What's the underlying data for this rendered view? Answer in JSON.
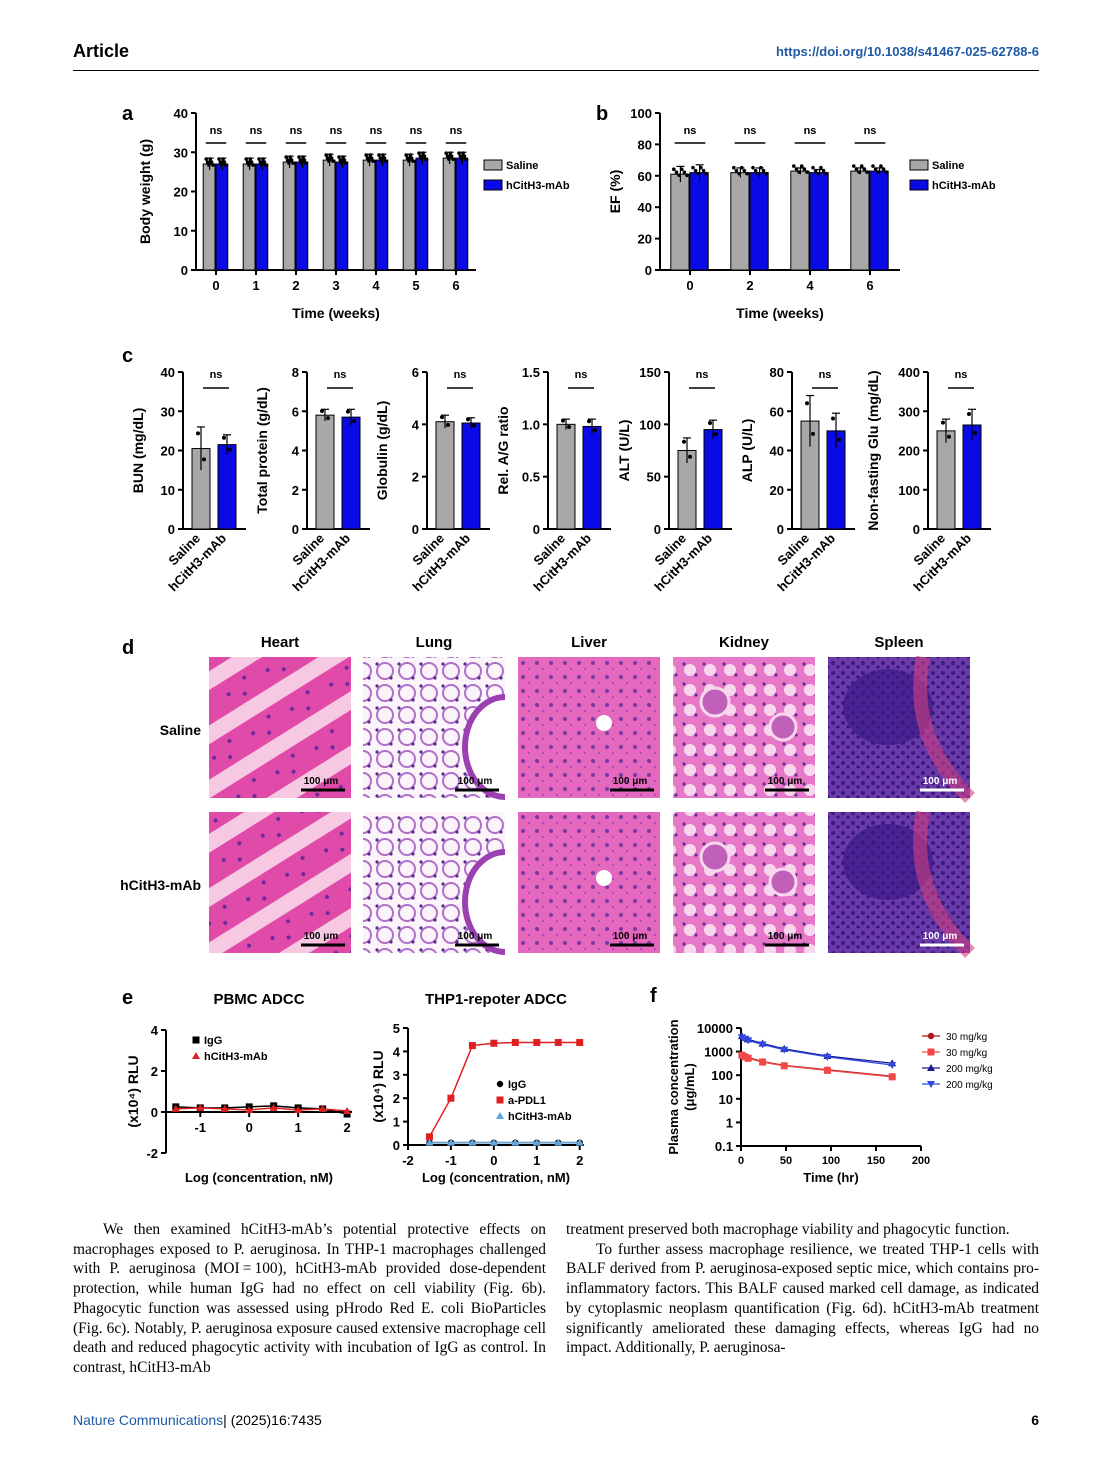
{
  "header": {
    "section": "Article",
    "doi": "https://doi.org/10.1038/s41467-025-62788-6"
  },
  "colors": {
    "saline": "#a8a8a8",
    "mab": "#0a0ae6",
    "red": "#e02020",
    "lightblue": "#5fa6e0",
    "link": "#1f5aa6"
  },
  "panel_labels": {
    "a": "a",
    "b": "b",
    "c": "c",
    "d": "d",
    "e": "e",
    "f": "f"
  },
  "chart_data": [
    {
      "id": "a",
      "type": "bar",
      "categories": [
        "0",
        "1",
        "2",
        "3",
        "4",
        "5",
        "6"
      ],
      "series": [
        {
          "name": "Saline",
          "values": [
            27,
            27,
            27.5,
            28,
            28,
            28,
            28.5
          ]
        },
        {
          "name": "hCitH3-mAb",
          "values": [
            27,
            27,
            27.5,
            27.5,
            28,
            28.5,
            28.5
          ]
        }
      ],
      "errors": [
        1.5,
        1.5,
        1.5,
        1.5,
        1.5,
        1.5,
        1.5
      ],
      "xlabel": "Time (weeks)",
      "ylabel": "Body weight (g)",
      "ylim": [
        0,
        40
      ],
      "yticks": [
        "0",
        "10",
        "20",
        "30",
        "40"
      ],
      "sig": [
        "ns",
        "ns",
        "ns",
        "ns",
        "ns",
        "ns",
        "ns"
      ]
    },
    {
      "id": "b",
      "type": "bar",
      "categories": [
        "0",
        "2",
        "4",
        "6"
      ],
      "series": [
        {
          "name": "Saline",
          "values": [
            61,
            62,
            63,
            63
          ]
        },
        {
          "name": "hCitH3-mAb",
          "values": [
            62,
            62,
            62,
            63
          ]
        }
      ],
      "errors": [
        5,
        3,
        2,
        2
      ],
      "xlabel": "Time (weeks)",
      "ylabel": "EF (%)",
      "ylim": [
        0,
        100
      ],
      "yticks": [
        "0",
        "20",
        "40",
        "60",
        "80",
        "100"
      ],
      "sig": [
        "ns",
        "ns",
        "ns",
        "ns"
      ]
    },
    {
      "id": "c",
      "type": "bar",
      "subplots": [
        {
          "ylabel": "BUN (mg/dL)",
          "ylim": [
            0,
            40
          ],
          "yticks": [
            "0",
            "10",
            "20",
            "30",
            "40"
          ],
          "values": [
            20.5,
            21.5
          ],
          "errors": [
            5.5,
            2.5
          ],
          "sig": "ns"
        },
        {
          "ylabel": "Total protein (g/dL)",
          "ylim": [
            0,
            8
          ],
          "yticks": [
            "0",
            "2",
            "4",
            "6",
            "8"
          ],
          "values": [
            5.8,
            5.7
          ],
          "errors": [
            0.3,
            0.4
          ],
          "sig": "ns"
        },
        {
          "ylabel": "Globulin (g/dL)",
          "ylim": [
            0,
            6
          ],
          "yticks": [
            "0",
            "2",
            "4",
            "6"
          ],
          "values": [
            4.1,
            4.05
          ],
          "errors": [
            0.25,
            0.2
          ],
          "sig": "ns"
        },
        {
          "ylabel": "Rel. A/G ratio",
          "ylim": [
            0,
            1.5
          ],
          "yticks": [
            "0",
            "0.5",
            "1.0",
            "1.5"
          ],
          "values": [
            1.0,
            0.98
          ],
          "errors": [
            0.05,
            0.07
          ],
          "sig": "ns"
        },
        {
          "ylabel": "ALT (U/L)",
          "ylim": [
            0,
            150
          ],
          "yticks": [
            "0",
            "50",
            "100",
            "150"
          ],
          "values": [
            75,
            95
          ],
          "errors": [
            12,
            9
          ],
          "sig": "ns"
        },
        {
          "ylabel": "ALP (U/L)",
          "ylim": [
            0,
            80
          ],
          "yticks": [
            "0",
            "20",
            "40",
            "60",
            "80"
          ],
          "values": [
            55,
            50
          ],
          "errors": [
            13,
            9
          ],
          "sig": "ns"
        },
        {
          "ylabel": "Non-fasting Glu (mg/dL)",
          "ylim": [
            0,
            400
          ],
          "yticks": [
            "0",
            "100",
            "200",
            "300",
            "400"
          ],
          "values": [
            250,
            265
          ],
          "errors": [
            30,
            40
          ],
          "sig": "ns"
        }
      ],
      "categories": [
        "Saline",
        "hCitH3-mAb"
      ]
    },
    {
      "id": "e1",
      "type": "line",
      "title": "PBMC ADCC",
      "xlabel": "Log (concentration, nM)",
      "ylabel": "(x10⁴) RLU",
      "xlim": [
        -1.7,
        2.1
      ],
      "ylim": [
        -2,
        4
      ],
      "xticks": [
        "-1",
        "0",
        "1",
        "2"
      ],
      "yticks": [
        "-2",
        "0",
        "2",
        "4"
      ],
      "series": [
        {
          "name": "IgG",
          "x": [
            -1.5,
            -1,
            -0.5,
            0,
            0.5,
            1,
            1.5,
            2
          ],
          "y": [
            0.25,
            0.2,
            0.2,
            0.25,
            0.3,
            0.2,
            0.15,
            -0.1
          ]
        },
        {
          "name": "hCitH3-mAb",
          "x": [
            -1.5,
            -1,
            -0.5,
            0,
            0.5,
            1,
            1.5,
            2
          ],
          "y": [
            0.15,
            0.2,
            0.15,
            0.1,
            0.2,
            0.1,
            0.15,
            0.05
          ]
        }
      ]
    },
    {
      "id": "e2",
      "type": "line",
      "title": "THP1-repoter ADCC",
      "xlabel": "Log (concentration, nM)",
      "ylabel": "(x10⁴) RLU",
      "xlim": [
        -2,
        2.1
      ],
      "ylim": [
        0,
        5
      ],
      "xticks": [
        "-2",
        "-1",
        "0",
        "1",
        "2"
      ],
      "yticks": [
        "0",
        "1",
        "2",
        "3",
        "4",
        "5"
      ],
      "series": [
        {
          "name": "IgG",
          "x": [
            -1.5,
            -1,
            -0.5,
            0,
            0.5,
            1,
            1.5,
            2
          ],
          "y": [
            0.1,
            0.1,
            0.1,
            0.1,
            0.1,
            0.1,
            0.1,
            0.1
          ]
        },
        {
          "name": "a-PDL1",
          "x": [
            -1.5,
            -1,
            -0.5,
            0,
            0.5,
            1,
            1.5,
            2
          ],
          "y": [
            0.35,
            2.0,
            4.25,
            4.35,
            4.38,
            4.38,
            4.38,
            4.38
          ]
        },
        {
          "name": "hCitH3-mAb",
          "x": [
            -1.5,
            -1,
            -0.5,
            0,
            0.5,
            1,
            1.5,
            2
          ],
          "y": [
            0.1,
            0.1,
            0.1,
            0.1,
            0.1,
            0.1,
            0.1,
            0.1
          ]
        }
      ]
    },
    {
      "id": "f",
      "type": "line",
      "log_y": true,
      "xlabel": "Time (hr)",
      "ylabel": "Plasma concentration (μg/mL)",
      "xlim": [
        0,
        200
      ],
      "ylim": [
        0.1,
        10000
      ],
      "xticks": [
        "0",
        "50",
        "100",
        "150",
        "200"
      ],
      "yticks": [
        "0.1",
        "1",
        "10",
        "100",
        "1000",
        "10000"
      ],
      "series": [
        {
          "name": "30 mg/kg",
          "x": [
            1,
            4,
            8,
            24,
            48,
            96,
            168
          ],
          "y": [
            750,
            650,
            560,
            380,
            260,
            170,
            90
          ]
        },
        {
          "name": "30 mg/kg",
          "x": [
            1,
            4,
            8,
            24,
            48,
            96,
            168
          ],
          "y": [
            700,
            600,
            520,
            360,
            250,
            160,
            85
          ]
        },
        {
          "name": "200 mg/kg",
          "x": [
            1,
            4,
            8,
            24,
            48,
            96,
            168
          ],
          "y": [
            4500,
            3800,
            3300,
            2200,
            1300,
            650,
            320
          ]
        },
        {
          "name": "200 mg/kg",
          "x": [
            1,
            4,
            8,
            24,
            48,
            96,
            168
          ],
          "y": [
            4000,
            3500,
            3000,
            2000,
            1200,
            600,
            270
          ]
        }
      ]
    }
  ],
  "legend_ab": {
    "saline": "Saline",
    "mab": "hCitH3-mAb"
  },
  "histology": {
    "columns": [
      "Heart",
      "Lung",
      "Liver",
      "Kidney",
      "Spleen"
    ],
    "rows": [
      "Saline",
      "hCitH3-mAb"
    ],
    "scale_label": "100 μm"
  },
  "body_left": [
    "We then examined hCitH3-mAb’s potential protective effects on macrophages exposed to P. aeruginosa. In THP-1 macrophages challenged with P. aeruginosa (MOI = 100), hCitH3-mAb provided dose-dependent protection, while human IgG had no effect on cell viability (Fig. 6b). Phagocytic function was assessed using pHrodo Red E. coli BioParticles (Fig. 6c). Notably, P. aeruginosa exposure caused extensive macrophage cell death and reduced phagocytic activity with incubation of IgG as control. In contrast, hCitH3-mAb"
  ],
  "body_right": [
    "treatment preserved both macrophage viability and phagocytic function.",
    "To further assess macrophage resilience, we treated THP-1 cells with BALF derived from P. aeruginosa-exposed septic mice, which contains pro-inflammatory factors. This BALF caused marked cell damage, as indicated by cytoplasmic neoplasm quantification (Fig. 6d). hCitH3-mAb treatment significantly ameliorated these damaging effects, whereas IgG had no impact. Additionally, P. aeruginosa-"
  ],
  "footer": {
    "journal": "Nature Communications",
    "citation": "| (2025)16:7435",
    "page": "6"
  }
}
